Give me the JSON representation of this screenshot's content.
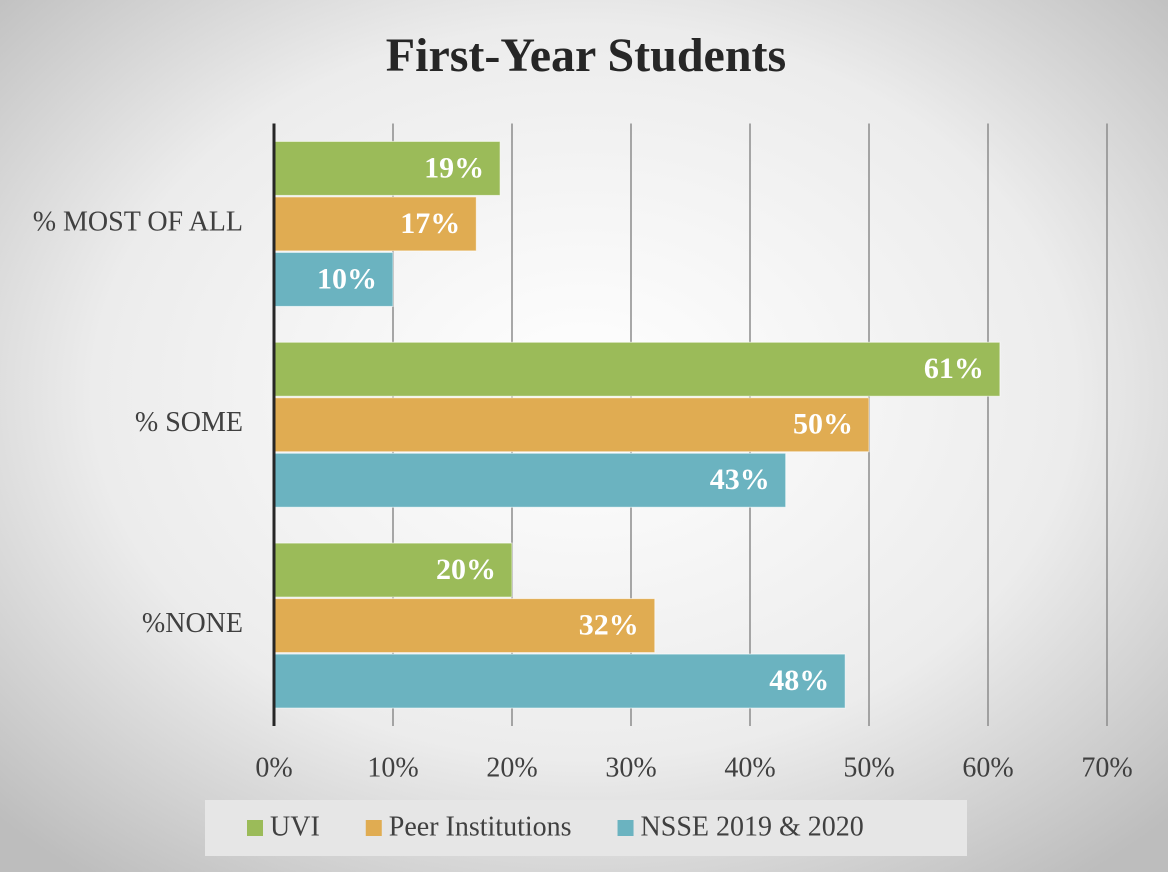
{
  "chart_data": {
    "type": "bar",
    "orientation": "horizontal",
    "title": "First-Year Students",
    "categories": [
      "% MOST OF ALL",
      "% SOME",
      "%NONE"
    ],
    "series": [
      {
        "name": "UVI",
        "color": "#9bbb59",
        "values": [
          19,
          61,
          20
        ],
        "value_labels": [
          "19%",
          "61%",
          "20%"
        ]
      },
      {
        "name": "Peer Institutions",
        "color": "#e0ac52",
        "values": [
          17,
          50,
          32
        ],
        "value_labels": [
          "17%",
          "50%",
          "32%"
        ]
      },
      {
        "name": "NSSE 2019 & 2020",
        "color": "#6bb3c0",
        "values": [
          10,
          43,
          48
        ],
        "value_labels": [
          "10%",
          "43%",
          "48%"
        ]
      }
    ],
    "xlim": [
      0,
      70
    ],
    "xticks": [
      {
        "value": 0,
        "label": "0%"
      },
      {
        "value": 10,
        "label": "10%"
      },
      {
        "value": 20,
        "label": "20%"
      },
      {
        "value": 30,
        "label": "30%"
      },
      {
        "value": 40,
        "label": "40%"
      },
      {
        "value": 50,
        "label": "50%"
      },
      {
        "value": 60,
        "label": "60%"
      },
      {
        "value": 70,
        "label": "70%"
      }
    ],
    "grid": true,
    "legend": "bottom"
  }
}
